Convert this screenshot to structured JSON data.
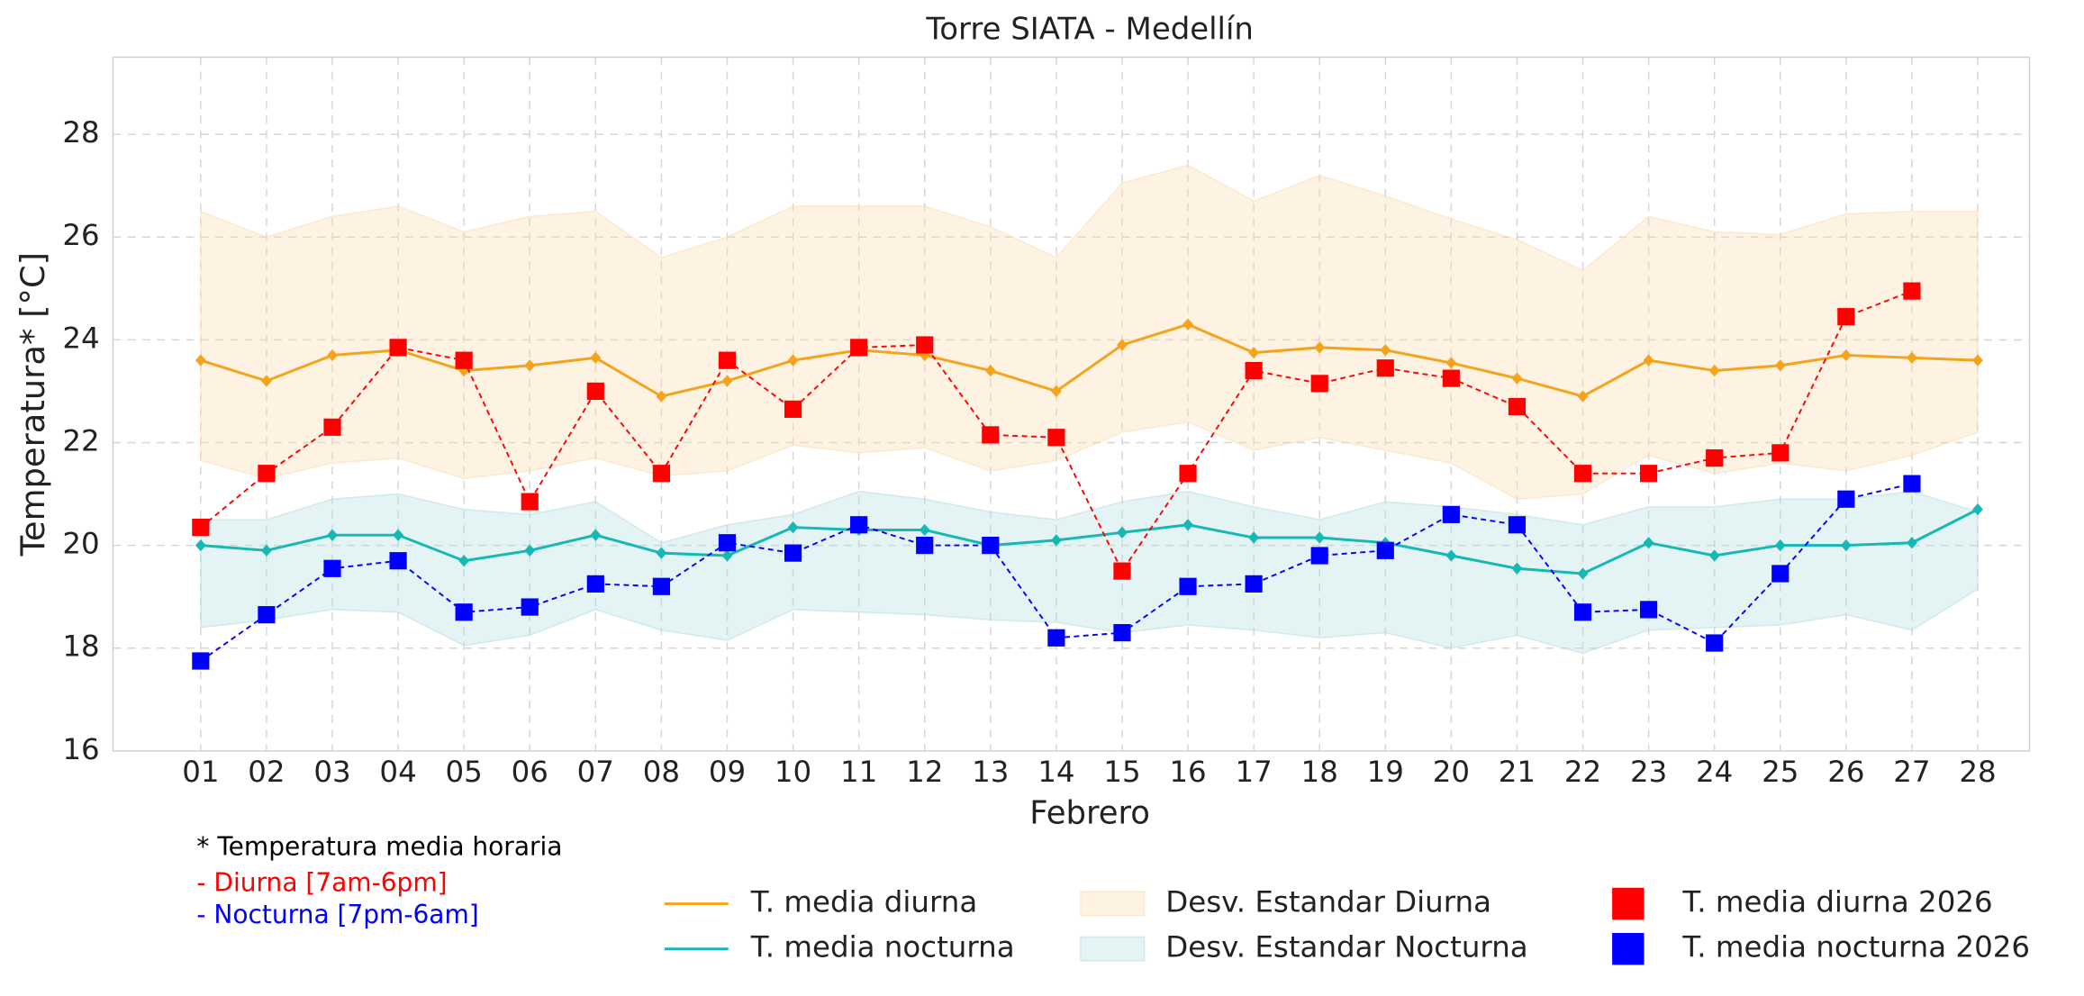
{
  "chart_data": {
    "type": "line",
    "title": "Torre SIATA - Medellín",
    "x_label": "Febrero",
    "y_label": "Temperatura* [°C]",
    "categories": [
      "01",
      "02",
      "03",
      "04",
      "05",
      "06",
      "07",
      "08",
      "09",
      "10",
      "11",
      "12",
      "13",
      "14",
      "15",
      "16",
      "17",
      "18",
      "19",
      "20",
      "21",
      "22",
      "23",
      "24",
      "25",
      "26",
      "27",
      "28"
    ],
    "ylim": [
      16,
      29.5
    ],
    "yticks": [
      16,
      18,
      20,
      22,
      24,
      26,
      28
    ],
    "grid": true,
    "series": [
      {
        "name": "T. media diurna",
        "color": "#f5a31a",
        "marker": "diamond",
        "dashed": false,
        "values": [
          23.6,
          23.2,
          23.7,
          23.8,
          23.4,
          23.5,
          23.65,
          22.9,
          23.2,
          23.6,
          23.8,
          23.7,
          23.4,
          23.0,
          23.9,
          24.3,
          23.75,
          23.85,
          23.8,
          23.55,
          23.25,
          22.9,
          23.6,
          23.4,
          23.5,
          23.7,
          23.65,
          23.6
        ]
      },
      {
        "name": "T. media nocturna",
        "color": "#14b8b4",
        "marker": "diamond",
        "dashed": false,
        "values": [
          20.0,
          19.9,
          20.2,
          20.2,
          19.7,
          19.9,
          20.2,
          19.85,
          19.8,
          20.35,
          20.3,
          20.3,
          20.0,
          20.1,
          20.25,
          20.4,
          20.15,
          20.15,
          20.05,
          19.8,
          19.55,
          19.45,
          20.05,
          19.8,
          20.0,
          20.0,
          20.05,
          20.7
        ]
      },
      {
        "name": "T. media diurna 2026",
        "color": "#ff0000",
        "marker": "square",
        "dashed": true,
        "values": [
          20.35,
          21.4,
          22.3,
          23.85,
          23.6,
          20.85,
          23.0,
          21.4,
          23.6,
          22.65,
          23.85,
          23.9,
          22.15,
          22.1,
          19.5,
          21.4,
          23.4,
          23.15,
          23.45,
          23.25,
          22.7,
          21.4,
          21.4,
          21.7,
          21.8,
          24.45,
          24.95,
          null
        ]
      },
      {
        "name": "T. media nocturna 2026",
        "color": "#0000ff",
        "marker": "square",
        "dashed": true,
        "values": [
          17.75,
          18.65,
          19.55,
          19.7,
          18.7,
          18.8,
          19.25,
          19.2,
          20.05,
          19.85,
          20.4,
          20.0,
          20.0,
          18.2,
          18.3,
          19.2,
          19.25,
          19.8,
          19.9,
          20.6,
          20.4,
          18.7,
          18.75,
          18.1,
          19.45,
          20.9,
          21.2,
          null
        ]
      }
    ],
    "bands": [
      {
        "name": "Desv. Estandar Diurna",
        "color": "#fcd9ae",
        "upper": [
          26.5,
          26.0,
          26.4,
          26.6,
          26.1,
          26.4,
          26.5,
          25.6,
          26.0,
          26.6,
          26.6,
          26.6,
          26.2,
          25.6,
          27.05,
          27.4,
          26.7,
          27.2,
          26.8,
          26.35,
          25.95,
          25.35,
          26.4,
          26.1,
          26.05,
          26.45,
          26.5,
          26.5
        ],
        "lower": [
          21.65,
          21.3,
          21.6,
          21.7,
          21.3,
          21.45,
          21.7,
          21.35,
          21.45,
          21.95,
          21.8,
          21.9,
          21.45,
          21.65,
          22.2,
          22.4,
          21.85,
          22.1,
          21.85,
          21.6,
          20.9,
          21.0,
          21.75,
          21.4,
          21.6,
          21.45,
          21.75,
          22.2
        ]
      },
      {
        "name": "Desv. Estandar Nocturna",
        "color": "#b3dcdc",
        "upper": [
          20.5,
          20.5,
          20.9,
          21.0,
          20.7,
          20.6,
          20.85,
          20.05,
          20.4,
          20.6,
          21.05,
          20.9,
          20.65,
          20.5,
          20.85,
          21.05,
          20.75,
          20.5,
          20.85,
          20.75,
          20.6,
          20.4,
          20.75,
          20.75,
          20.9,
          20.9,
          21.05,
          20.65
        ],
        "lower": [
          18.4,
          18.55,
          18.75,
          18.7,
          18.05,
          18.25,
          18.75,
          18.35,
          18.15,
          18.75,
          18.7,
          18.65,
          18.55,
          18.5,
          18.3,
          18.45,
          18.35,
          18.2,
          18.3,
          18.0,
          18.25,
          17.9,
          18.35,
          18.4,
          18.45,
          18.65,
          18.35,
          19.15
        ]
      }
    ],
    "annotations": [
      {
        "text": "* Temperatura media horaria",
        "color": "#000000"
      },
      {
        "text": "- Diurna [7am-6pm]",
        "color": "#ff0000"
      },
      {
        "text": "- Nocturna [7pm-6am]",
        "color": "#0000ff"
      }
    ]
  }
}
